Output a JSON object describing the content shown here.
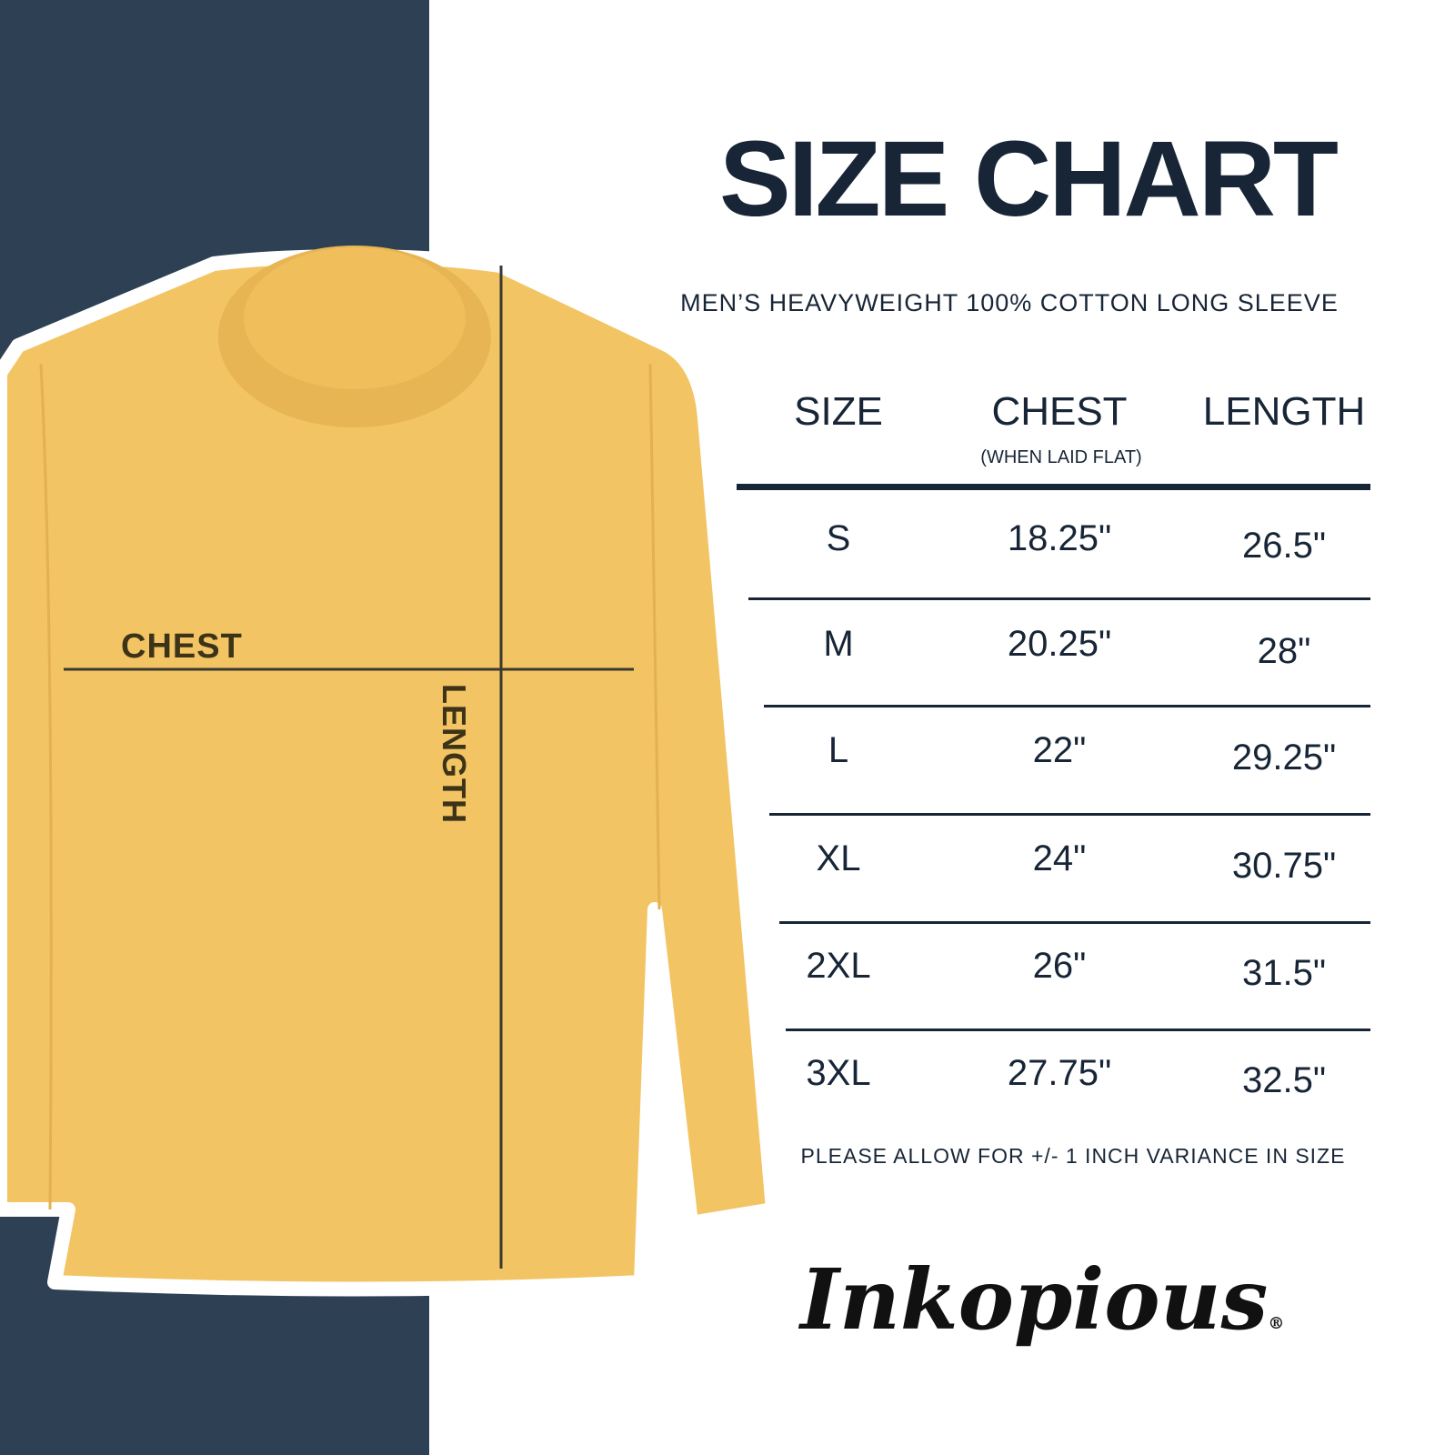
{
  "title": "SIZE CHART",
  "subtitle": "MEN’S HEAVYWEIGHT 100% COTTON LONG SLEEVE",
  "diagram": {
    "chest_label": "CHEST",
    "length_label": "LENGTH",
    "shirt_color": "#f2c463"
  },
  "table": {
    "headers": [
      {
        "label": "SIZE",
        "sub": ""
      },
      {
        "label": "CHEST",
        "sub": "(WHEN LAID FLAT)"
      },
      {
        "label": "LENGTH",
        "sub": ""
      }
    ],
    "rows": [
      {
        "size": "S",
        "chest": "18.25\"",
        "length": "26.5\""
      },
      {
        "size": "M",
        "chest": "20.25\"",
        "length": "28\""
      },
      {
        "size": "L",
        "chest": "22\"",
        "length": "29.25\""
      },
      {
        "size": "XL",
        "chest": "24\"",
        "length": "30.75\""
      },
      {
        "size": "2XL",
        "chest": "26\"",
        "length": "31.5\""
      },
      {
        "size": "3XL",
        "chest": "27.75\"",
        "length": "32.5\""
      }
    ]
  },
  "note": "PLEASE ALLOW FOR +/- 1 INCH VARIANCE IN SIZE",
  "brand": {
    "logo_text": "Inkopious",
    "registered": "®"
  },
  "colors": {
    "navy": "#2e4154",
    "text": "#172536"
  }
}
